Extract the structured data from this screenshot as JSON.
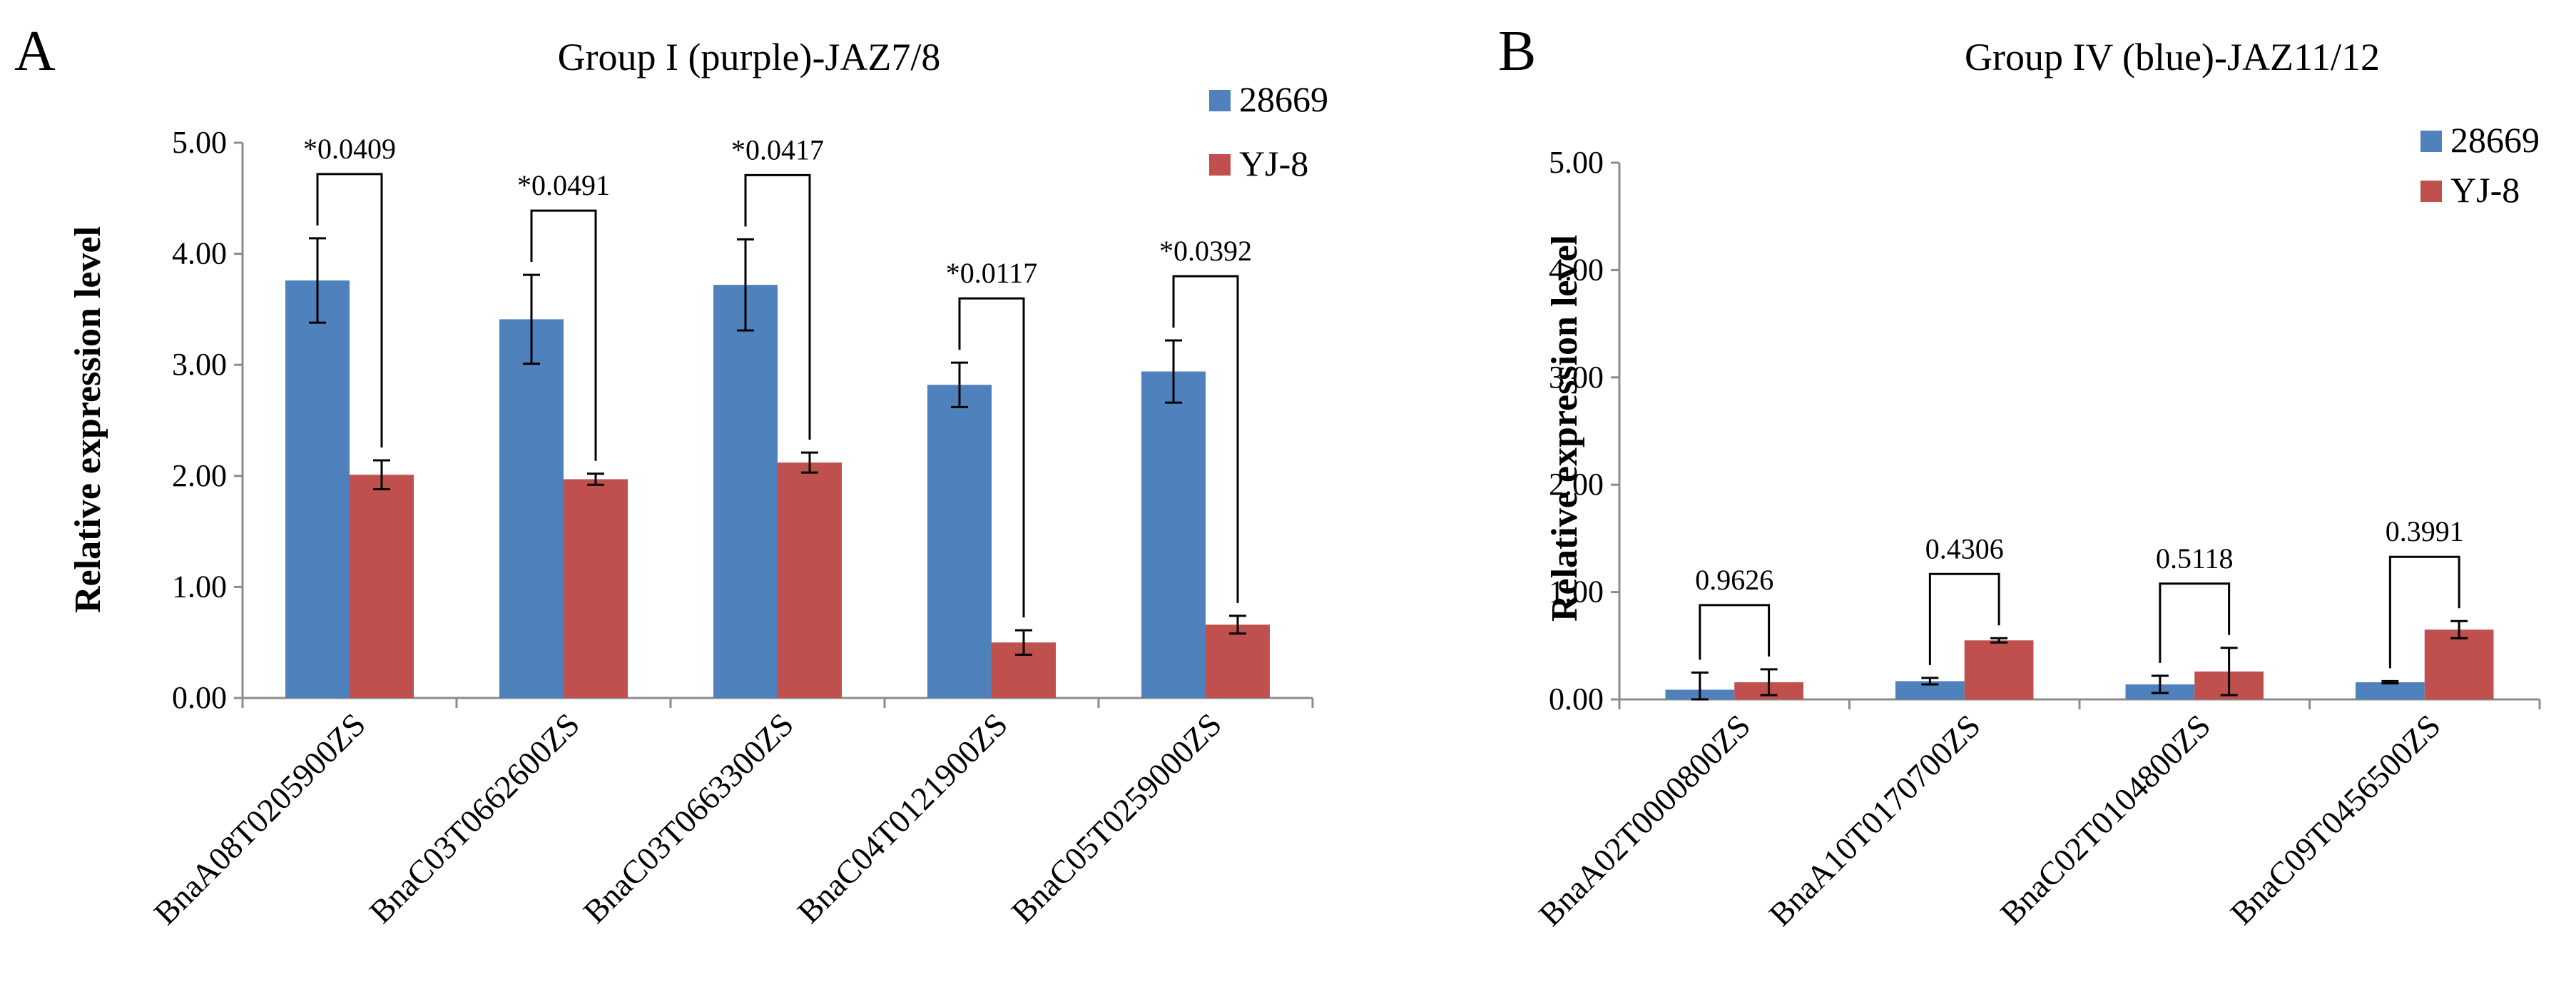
{
  "chart_data": [
    {
      "panel_label": "A",
      "type": "bar",
      "title": "Group I (purple)-JAZ7/8",
      "xlabel": "",
      "ylabel": "Relative expression level",
      "ylim": [
        0,
        5
      ],
      "yticks": [
        "0.00",
        "1.00",
        "2.00",
        "3.00",
        "4.00",
        "5.00"
      ],
      "categories": [
        "BnaA08T0205900ZS",
        "BnaC03T0662600ZS",
        "BnaC03T0663300ZS",
        "BnaC04T0121900ZS",
        "BnaC05T0259000ZS"
      ],
      "series": [
        {
          "name": "28669",
          "color": "#4f81bd",
          "values": [
            3.76,
            3.41,
            3.72,
            2.82,
            2.94
          ],
          "errors": [
            0.38,
            0.4,
            0.41,
            0.2,
            0.28
          ]
        },
        {
          "name": "YJ-8",
          "color": "#c0504d",
          "values": [
            2.01,
            1.97,
            2.12,
            0.5,
            0.66
          ],
          "errors": [
            0.13,
            0.05,
            0.09,
            0.11,
            0.08
          ]
        }
      ],
      "annotations": [
        "*0.0409",
        "*0.0491",
        "*0.0417",
        "*0.0117",
        "*0.0392"
      ],
      "legend": "top-right",
      "grid": false
    },
    {
      "panel_label": "B",
      "type": "bar",
      "title": "Group IV (blue)-JAZ11/12",
      "xlabel": "",
      "ylabel": "Relative expression level",
      "ylim": [
        0,
        5
      ],
      "yticks": [
        "0.00",
        "1.00",
        "2.00",
        "3.00",
        "4.00",
        "5.00"
      ],
      "categories": [
        "BnaA02T0000800ZS",
        "BnaA10T0170700ZS",
        "BnaC02T0104800ZS",
        "BnaC09T0456500ZS"
      ],
      "series": [
        {
          "name": "28669",
          "color": "#4f81bd",
          "values": [
            0.09,
            0.17,
            0.14,
            0.16
          ],
          "errors": [
            0.16,
            0.03,
            0.08,
            0.01
          ]
        },
        {
          "name": "YJ-8",
          "color": "#c0504d",
          "values": [
            0.16,
            0.55,
            0.26,
            0.65
          ],
          "errors": [
            0.12,
            0.02,
            0.22,
            0.08
          ]
        }
      ],
      "annotations": [
        "0.9626",
        "0.4306",
        "0.5118",
        "0.3991"
      ],
      "legend": "top-right",
      "grid": false
    }
  ]
}
